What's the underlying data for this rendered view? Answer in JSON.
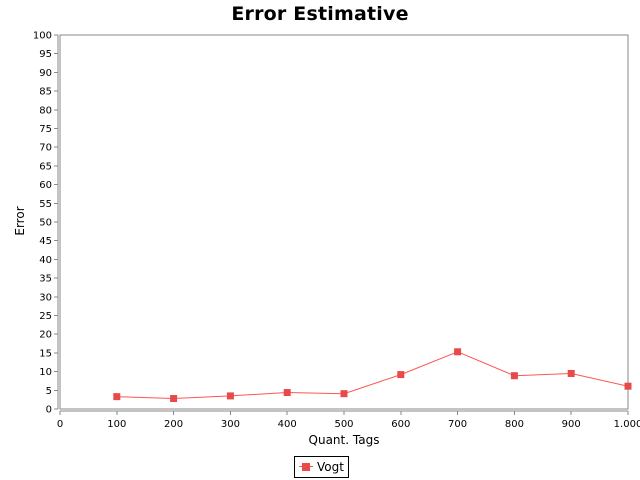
{
  "chart_data": {
    "type": "line",
    "title": "Error Estimative",
    "xlabel": "Quant. Tags",
    "ylabel": "Error",
    "xlim": [
      0,
      1000
    ],
    "ylim": [
      0,
      100
    ],
    "x_ticks": [
      0,
      100,
      200,
      300,
      400,
      500,
      600,
      700,
      800,
      900,
      1000
    ],
    "x_tick_labels": [
      "0",
      "100",
      "200",
      "300",
      "400",
      "500",
      "600",
      "700",
      "800",
      "900",
      "1.000"
    ],
    "y_ticks": [
      0,
      5,
      10,
      15,
      20,
      25,
      30,
      35,
      40,
      45,
      50,
      55,
      60,
      65,
      70,
      75,
      80,
      85,
      90,
      95,
      100
    ],
    "grid": false,
    "legend_position": "bottom-center",
    "series": [
      {
        "name": "Vogt",
        "color": "#ff5555",
        "marker": "square",
        "x": [
          100,
          200,
          300,
          400,
          500,
          600,
          700,
          800,
          900,
          1000
        ],
        "y": [
          3.3,
          2.8,
          3.5,
          4.4,
          4.1,
          9.2,
          15.3,
          8.9,
          9.5,
          6.1
        ]
      }
    ]
  }
}
